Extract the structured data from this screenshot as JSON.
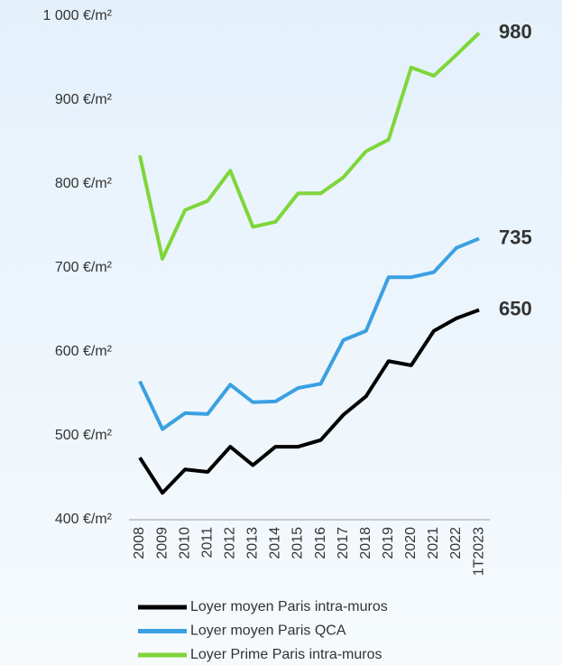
{
  "chart_data": {
    "type": "line",
    "categories": [
      "2008",
      "2009",
      "2010",
      "2011",
      "2012",
      "2013",
      "2014",
      "2015",
      "2016",
      "2017",
      "2018",
      "2019",
      "2020",
      "2021",
      "2022",
      "1T2023"
    ],
    "series": [
      {
        "name": "Loyer moyen Paris intra-muros",
        "color": "#000000",
        "values": [
          474,
          432,
          460,
          457,
          487,
          465,
          487,
          487,
          495,
          525,
          547,
          589,
          584,
          625,
          640,
          650
        ]
      },
      {
        "name": "Loyer moyen Paris QCA",
        "color": "#3aa0e2",
        "values": [
          565,
          508,
          527,
          526,
          561,
          540,
          541,
          557,
          562,
          614,
          625,
          689,
          689,
          695,
          724,
          735
        ]
      },
      {
        "name": "Loyer Prime Paris intra-muros",
        "color": "#7ed63a",
        "values": [
          834,
          711,
          769,
          780,
          816,
          749,
          755,
          789,
          789,
          808,
          839,
          853,
          939,
          929,
          954,
          980
        ]
      }
    ],
    "ylim": [
      400,
      1000
    ],
    "yticks": [
      {
        "value": 400,
        "label": "400 €/m²"
      },
      {
        "value": 500,
        "label": "500 €/m²"
      },
      {
        "value": 600,
        "label": "600 €/m²"
      },
      {
        "value": 700,
        "label": "700 €/m²"
      },
      {
        "value": 800,
        "label": "800 €/m²"
      },
      {
        "value": 900,
        "label": "900 €/m²"
      },
      {
        "value": 1000,
        "label": "1 000 €/m²"
      }
    ],
    "grid": false,
    "legend": "bottom"
  }
}
